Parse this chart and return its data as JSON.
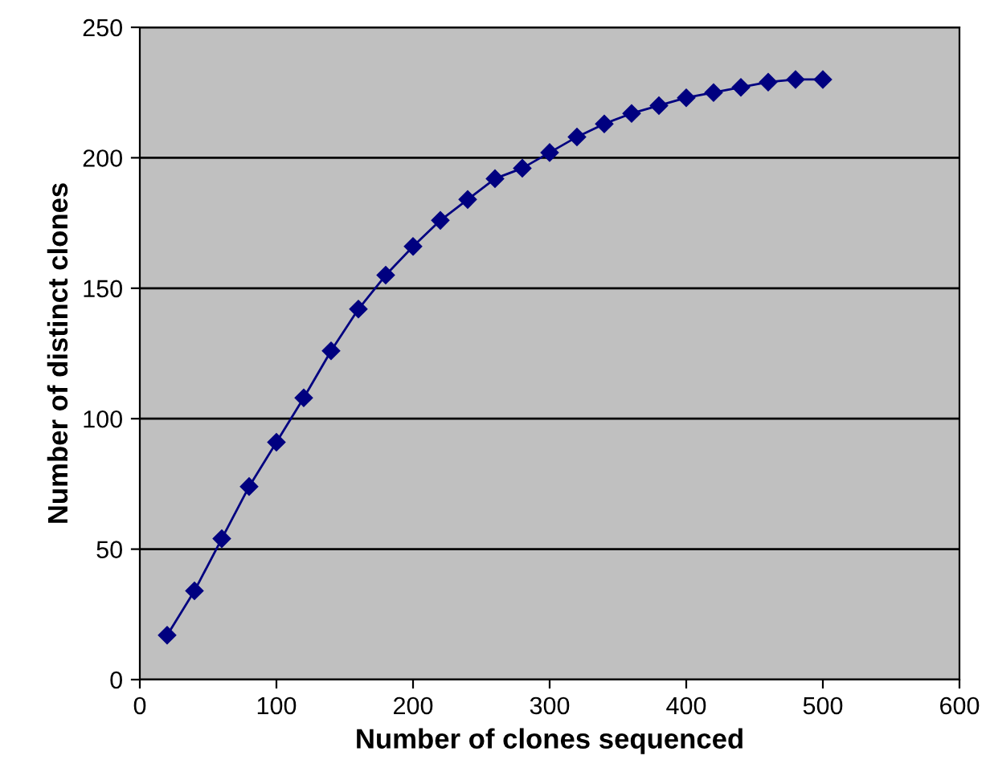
{
  "chart_data": {
    "type": "line",
    "xlabel": "Number of clones sequenced",
    "ylabel": "Number of distinct clones",
    "x": [
      20,
      40,
      60,
      80,
      100,
      120,
      140,
      160,
      180,
      200,
      220,
      240,
      260,
      280,
      300,
      320,
      340,
      360,
      380,
      400,
      420,
      440,
      460,
      480,
      500
    ],
    "series": [
      {
        "color": "#000080",
        "values": [
          17,
          34,
          54,
          74,
          91,
          108,
          126,
          142,
          155,
          166,
          176,
          184,
          192,
          196,
          202,
          208,
          213,
          217,
          220,
          223,
          225,
          227,
          229,
          230,
          230
        ]
      }
    ],
    "xlim": [
      0,
      600
    ],
    "xticks": [
      0,
      100,
      200,
      300,
      400,
      500,
      600
    ],
    "ylim": [
      0,
      250
    ],
    "yticks": [
      0,
      50,
      100,
      150,
      200,
      250
    ],
    "grid": "y",
    "marker": "diamond",
    "line_style": "solid",
    "legend": false
  }
}
